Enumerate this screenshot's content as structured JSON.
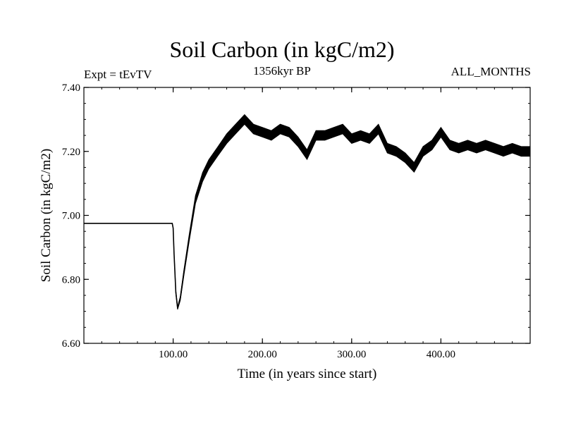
{
  "header": {
    "title": "Soil Carbon (in kgC/m2)",
    "subtitle": "1356kyr BP",
    "experiment": "Expt = tEvTV",
    "months": "ALL_MONTHS"
  },
  "chart_data": {
    "type": "line",
    "title": "Soil Carbon (in kgC/m2)",
    "subtitle": "1356kyr BP",
    "xlabel": "Time (in years since start)",
    "ylabel": "Soil Carbon (in kgC/m2)",
    "xlim": [
      0,
      500
    ],
    "ylim": [
      6.6,
      7.4
    ],
    "x_ticks": [
      100,
      200,
      300,
      400
    ],
    "x_tick_labels": [
      "100.00",
      "200.00",
      "300.00",
      "400.00"
    ],
    "y_ticks": [
      6.6,
      6.8,
      7.0,
      7.2,
      7.4
    ],
    "y_tick_labels": [
      "6.60",
      "6.80",
      "7.00",
      "7.20",
      "7.40"
    ],
    "grid": false,
    "series": [
      {
        "name": "Soil Carbon",
        "color": "#000000",
        "x": [
          0,
          99,
          100,
          101,
          103,
          105,
          108,
          112,
          118,
          125,
          133,
          140,
          150,
          160,
          170,
          180,
          190,
          200,
          210,
          220,
          230,
          240,
          250,
          260,
          270,
          280,
          290,
          300,
          310,
          320,
          330,
          340,
          350,
          360,
          370,
          380,
          390,
          400,
          410,
          420,
          430,
          440,
          450,
          460,
          470,
          480,
          490,
          500
        ],
        "values": [
          6.975,
          6.975,
          6.96,
          6.88,
          6.76,
          6.71,
          6.74,
          6.82,
          6.93,
          7.05,
          7.12,
          7.16,
          7.2,
          7.24,
          7.27,
          7.3,
          7.27,
          7.26,
          7.25,
          7.27,
          7.26,
          7.23,
          7.19,
          7.25,
          7.25,
          7.26,
          7.27,
          7.24,
          7.25,
          7.24,
          7.27,
          7.21,
          7.2,
          7.18,
          7.15,
          7.2,
          7.22,
          7.26,
          7.22,
          7.21,
          7.22,
          7.21,
          7.22,
          7.21,
          7.2,
          7.21,
          7.2,
          7.2
        ],
        "band_halfwidth": [
          0,
          0,
          0,
          0,
          0.004,
          0.004,
          0.006,
          0.008,
          0.01,
          0.012,
          0.014,
          0.014,
          0.014,
          0.015,
          0.015,
          0.015,
          0.015,
          0.015,
          0.015,
          0.015,
          0.015,
          0.015,
          0.015,
          0.015,
          0.015,
          0.015,
          0.015,
          0.015,
          0.015,
          0.015,
          0.015,
          0.015,
          0.015,
          0.015,
          0.015,
          0.015,
          0.015,
          0.015,
          0.015,
          0.015,
          0.015,
          0.015,
          0.015,
          0.015,
          0.015,
          0.015,
          0.015,
          0.015
        ]
      }
    ]
  }
}
